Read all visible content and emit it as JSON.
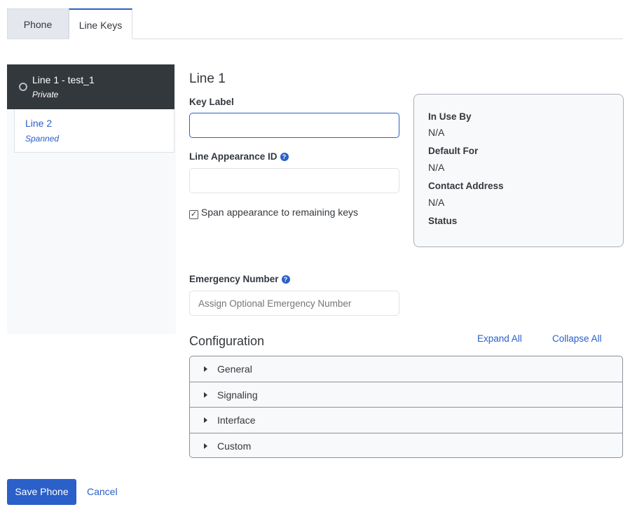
{
  "tabs": [
    {
      "label": "Phone"
    },
    {
      "label": "Line Keys"
    }
  ],
  "lines": [
    {
      "title": "Line 1 - test_1",
      "type": "Private"
    },
    {
      "title": "Line 2",
      "type": "Spanned"
    }
  ],
  "form": {
    "heading": "Line 1",
    "key_label": "Key Label",
    "key_label_value": "",
    "line_appearance_label": "Line Appearance ID",
    "line_appearance_value": "",
    "span_label": "Span appearance to remaining keys",
    "span_checked": true,
    "emergency_label": "Emergency Number",
    "emergency_placeholder": "Assign Optional Emergency Number"
  },
  "info": {
    "in_use_by_label": "In Use By",
    "in_use_by": "N/A",
    "default_for_label": "Default For",
    "default_for": "N/A",
    "contact_label": "Contact Address",
    "contact": "N/A",
    "status_label": "Status"
  },
  "config": {
    "title": "Configuration",
    "expand_all": "Expand All",
    "collapse_all": "Collapse All",
    "sections": [
      "General",
      "Signaling",
      "Interface",
      "Custom"
    ]
  },
  "footer": {
    "save": "Save Phone",
    "cancel": "Cancel"
  },
  "colors": {
    "accent": "#2a60c8",
    "dark": "#33383d"
  }
}
